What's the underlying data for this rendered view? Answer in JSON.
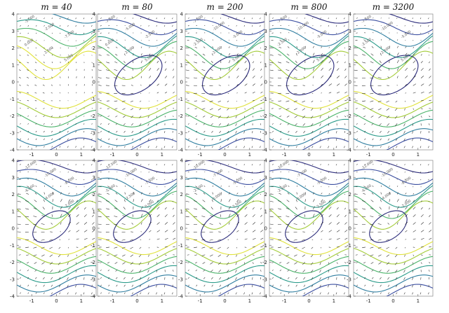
{
  "figure": {
    "column_titles": [
      "m = 40",
      "m = 80",
      "m = 200",
      "m = 800",
      "m = 3200"
    ],
    "colormap": [
      "#2a2a7a",
      "#3b4ea0",
      "#2f7ea0",
      "#2b9b8a",
      "#4bb36a",
      "#a4cc3a",
      "#e0e23a"
    ]
  },
  "chart_data": {
    "type": "contour-quiver",
    "layout": {
      "rows": 2,
      "cols": 5
    },
    "xticks": [
      -1,
      0,
      1
    ],
    "yticks": [
      4,
      3,
      2,
      1,
      0,
      -1,
      -2,
      -3,
      -4
    ],
    "xlim": [
      -1.6,
      1.6
    ],
    "ylim": [
      -4,
      4
    ],
    "panels": [
      {
        "row": 0,
        "col": 0,
        "title": "m = 40",
        "contour_labels": [
          "-5.000",
          "-2.500",
          "-7.500",
          "0.000",
          "2.500",
          "5.000"
        ]
      },
      {
        "row": 0,
        "col": 1,
        "title": "m = 80",
        "contour_labels": [
          "-7.500",
          "-5.000",
          "-2.500",
          "0.000",
          "2.500",
          "5.000"
        ]
      },
      {
        "row": 0,
        "col": 2,
        "title": "m = 200",
        "contour_labels": [
          "-7.500",
          "-10.000",
          "-5.000",
          "-2.500",
          "2.500",
          "5.000"
        ]
      },
      {
        "row": 0,
        "col": 3,
        "title": "m = 800",
        "contour_labels": [
          "-7.500",
          "-10.000",
          "-5.000",
          "-2.500",
          "2.500",
          "5.000"
        ]
      },
      {
        "row": 0,
        "col": 4,
        "title": "m = 3200",
        "contour_labels": [
          "-7.500",
          "-10.000",
          "-5.000",
          "-2.500",
          "2.500",
          "5.000"
        ]
      },
      {
        "row": 1,
        "col": 0,
        "title": "",
        "contour_labels": [
          "-12.000",
          "-10.000",
          "-8.000",
          "-6.000",
          "-4.000",
          "-2.000"
        ]
      },
      {
        "row": 1,
        "col": 1,
        "title": "",
        "contour_labels": [
          "-12.500",
          "-10.000",
          "-7.500",
          "-5.000",
          "-2.500",
          "0.000"
        ]
      },
      {
        "row": 1,
        "col": 2,
        "title": "",
        "contour_labels": [
          "-10.000",
          "-7.500",
          "-5.000",
          "-2.500",
          "0.000",
          "2.500"
        ]
      },
      {
        "row": 1,
        "col": 3,
        "title": "",
        "contour_labels": [
          "-10.000",
          "-7.500",
          "-5.000",
          "-2.500",
          "0.000",
          "2.500"
        ]
      },
      {
        "row": 1,
        "col": 4,
        "title": "",
        "contour_labels": [
          "-12.000",
          "-10.000",
          "-8.000",
          "-6.000",
          "-4.000",
          "-2.000"
        ]
      }
    ]
  }
}
